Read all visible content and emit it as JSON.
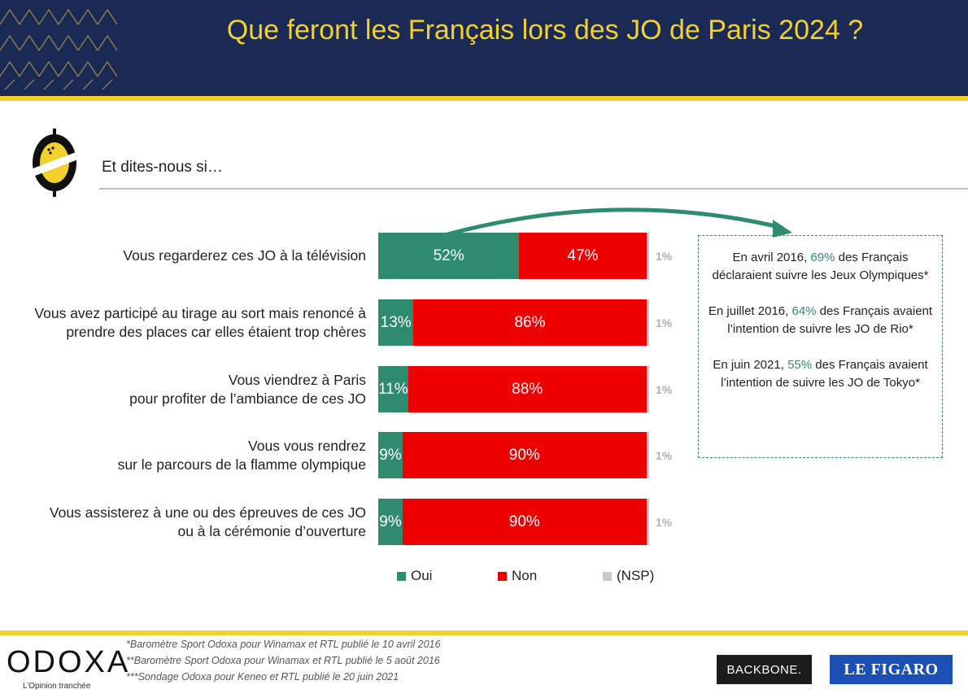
{
  "header": {
    "title": "Que feront les Français lors des JO de Paris 2024 ?"
  },
  "subtitle": "Et dites-nous si…",
  "chart_data": {
    "type": "bar",
    "orientation": "horizontal",
    "stacked": true,
    "categories": [
      "Vous regarderez ces JO à la télévision",
      "Vous avez participé au tirage au sort mais renoncé à prendre des places car elles étaient trop chères",
      "Vous viendrez à Paris pour profiter de l’ambiance de ces JO",
      "Vous vous rendrez sur le parcours de la flamme olympique",
      "Vous assisterez à une ou des épreuves de ces JO ou à la cérémonie d’ouverture"
    ],
    "category_lines": [
      [
        "Vous regarderez ces JO à la télévision"
      ],
      [
        "Vous avez participé au tirage au sort mais renoncé à",
        "prendre des places car elles étaient trop chères"
      ],
      [
        "Vous viendrez à Paris",
        "pour profiter de l’ambiance de ces JO"
      ],
      [
        "Vous vous rendrez",
        "sur le parcours de la flamme olympique"
      ],
      [
        "Vous assisterez à une ou des épreuves de ces JO",
        "ou à la cérémonie d’ouverture"
      ]
    ],
    "series": [
      {
        "name": "Oui",
        "color": "#2e8b6e",
        "values": [
          52,
          13,
          11,
          9,
          9
        ],
        "labels": [
          "52%",
          "13%",
          "11%",
          "9%",
          "9%"
        ]
      },
      {
        "name": "Non",
        "color": "#ee0000",
        "values": [
          47,
          86,
          88,
          90,
          90
        ],
        "labels": [
          "47%",
          "86%",
          "88%",
          "90%",
          "90%"
        ]
      },
      {
        "name": "(NSP)",
        "color": "#c9c9c9",
        "values": [
          1,
          1,
          1,
          1,
          1
        ],
        "labels": [
          "1%",
          "1%",
          "1%",
          "1%",
          "1%"
        ]
      }
    ],
    "xlim": [
      0,
      100
    ],
    "legend_position": "bottom",
    "grid": false
  },
  "note": {
    "paragraphs": [
      {
        "before": "En avril 2016, ",
        "pct": "69%",
        "after": " des Français déclaraient suivre les Jeux Olympiques*"
      },
      {
        "before": "En juillet 2016, ",
        "pct": "64%",
        "after": " des Français avaient l’intention de suivre les JO de Rio*"
      },
      {
        "before": "En juin 2021, ",
        "pct": "55%",
        "after": " des Français avaient l’intention de suivre les JO de Tokyo*"
      }
    ]
  },
  "footer": {
    "brand": "ODOXA",
    "tagline": "L’Opinion tranchée",
    "footnotes": [
      "*Baromètre Sport Odoxa pour Winamax et RTL publié le 10 avril 2016",
      "**Baromètre Sport Odoxa pour Winamax et RTL publié le 5 août 2016",
      "***Sondage Odoxa pour Keneo et RTL publié le 20 juin 2021"
    ],
    "partner1": "BACKBONE.",
    "partner2": "LE FIGARO"
  },
  "colors": {
    "header_bg": "#1b2a55",
    "accent_yellow": "#f2d02e",
    "oui_green": "#2e8b6e",
    "non_red": "#ee0000",
    "nsp_grey": "#c9c9c9"
  }
}
